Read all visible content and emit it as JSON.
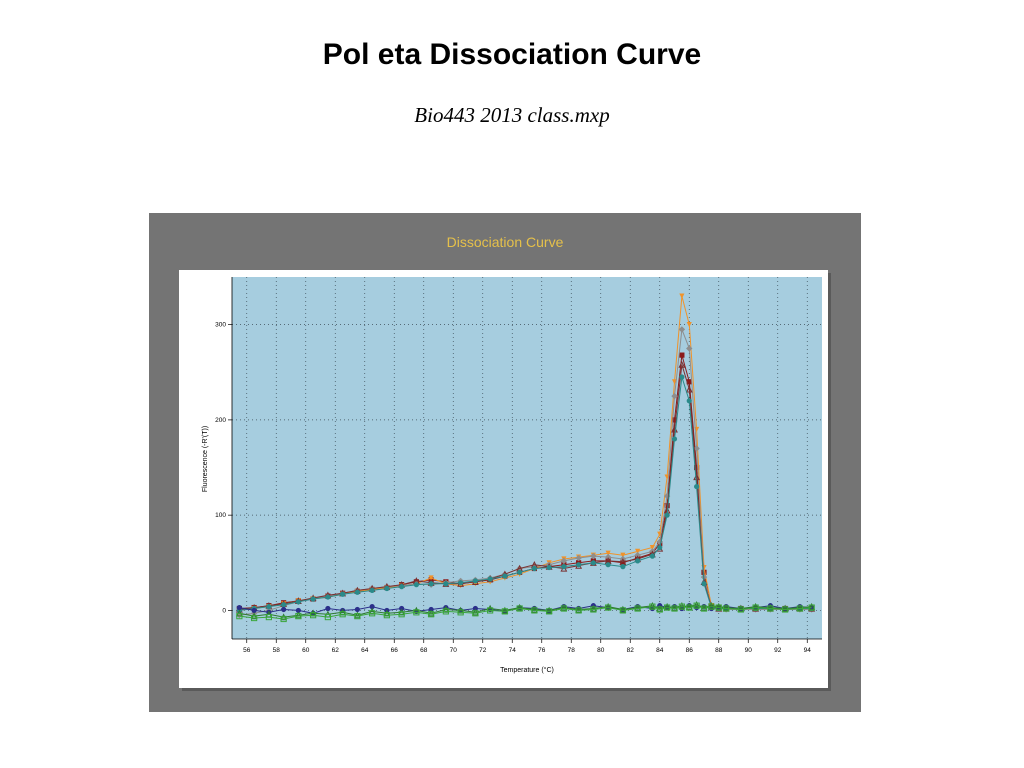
{
  "slide": {
    "title": "Pol eta Dissociation Curve",
    "subtitle": "Bio443 2013 class.mxp"
  },
  "colors": {
    "frame": "#747474",
    "panel_title": "#e5c04a",
    "plot_background": "#a6cddf",
    "grid": "#3a4a55"
  },
  "chart_data": {
    "type": "line",
    "title": "Dissociation Curve",
    "xlabel": "Temperature (°C)",
    "ylabel": "Fluorescence (-R'(T))",
    "xlim": [
      55,
      95
    ],
    "ylim": [
      -30,
      350
    ],
    "xticks": [
      56,
      58,
      60,
      62,
      64,
      66,
      68,
      70,
      72,
      74,
      76,
      78,
      80,
      82,
      84,
      86,
      88,
      90,
      92,
      94
    ],
    "yticks": [
      0,
      100,
      200,
      300
    ],
    "grid": true,
    "x": [
      55.5,
      56.5,
      57.5,
      58.5,
      59.5,
      60.5,
      61.5,
      62.5,
      63.5,
      64.5,
      65.5,
      66.5,
      67.5,
      68.5,
      69.5,
      70.5,
      71.5,
      72.5,
      73.5,
      74.5,
      75.5,
      76.5,
      77.5,
      78.5,
      79.5,
      80.5,
      81.5,
      82.5,
      83.5,
      84.0,
      84.5,
      85.0,
      85.5,
      86.0,
      86.5,
      87.0,
      87.5,
      88.0,
      88.5,
      89.5,
      90.5,
      91.5,
      92.5,
      93.5,
      94.3
    ],
    "series": [
      {
        "color": "#8b1a1a",
        "marker": "square",
        "values": [
          2,
          3,
          5,
          8,
          10,
          12,
          15,
          18,
          20,
          22,
          24,
          27,
          30,
          32,
          30,
          28,
          30,
          32,
          36,
          40,
          44,
          46,
          48,
          50,
          52,
          52,
          50,
          55,
          60,
          70,
          110,
          200,
          268,
          240,
          150,
          40,
          5,
          3,
          2,
          2,
          2,
          2,
          2,
          2,
          2
        ]
      },
      {
        "color": "#f0932a",
        "marker": "triangle-down",
        "values": [
          0,
          2,
          4,
          7,
          10,
          12,
          14,
          17,
          20,
          22,
          24,
          26,
          28,
          34,
          28,
          26,
          28,
          30,
          34,
          38,
          44,
          50,
          54,
          56,
          58,
          60,
          58,
          62,
          66,
          80,
          140,
          240,
          330,
          300,
          190,
          45,
          5,
          2,
          1,
          1,
          1,
          1,
          1,
          1,
          1
        ]
      },
      {
        "color": "#8e8e8e",
        "marker": "diamond",
        "values": [
          -5,
          -3,
          0,
          5,
          9,
          12,
          15,
          18,
          21,
          23,
          25,
          26,
          28,
          27,
          29,
          31,
          32,
          34,
          38,
          44,
          46,
          48,
          52,
          55,
          57,
          56,
          54,
          58,
          62,
          72,
          120,
          225,
          295,
          275,
          170,
          35,
          3,
          2,
          1,
          1,
          1,
          1,
          1,
          1,
          1
        ]
      },
      {
        "color": "#7a3030",
        "marker": "triangle-up",
        "values": [
          1,
          3,
          5,
          7,
          10,
          13,
          16,
          18,
          21,
          23,
          25,
          27,
          31,
          29,
          28,
          28,
          30,
          33,
          38,
          44,
          48,
          46,
          44,
          47,
          50,
          52,
          51,
          54,
          59,
          65,
          105,
          190,
          258,
          232,
          140,
          30,
          4,
          2,
          2,
          2,
          2,
          2,
          2,
          2,
          2
        ]
      },
      {
        "color": "#2a8a8a",
        "marker": "circle",
        "values": [
          0,
          2,
          4,
          6,
          9,
          12,
          14,
          17,
          19,
          21,
          23,
          25,
          27,
          28,
          28,
          29,
          31,
          33,
          36,
          40,
          44,
          45,
          46,
          48,
          50,
          48,
          46,
          52,
          57,
          66,
          100,
          180,
          245,
          220,
          130,
          28,
          3,
          2,
          2,
          2,
          2,
          2,
          2,
          2,
          2
        ]
      },
      {
        "color": "#2b2f8a",
        "marker": "circle",
        "values": [
          3,
          0,
          -2,
          1,
          0,
          -3,
          2,
          0,
          1,
          4,
          0,
          2,
          -1,
          1,
          3,
          0,
          2,
          1,
          -1,
          3,
          2,
          0,
          4,
          2,
          5,
          3,
          1,
          4,
          2,
          5,
          3,
          4,
          2,
          5,
          3,
          4,
          2,
          3,
          4,
          2,
          3,
          5,
          2,
          4,
          3
        ]
      },
      {
        "color": "#2f7a2f",
        "marker": "triangle-up",
        "values": [
          -3,
          -6,
          -4,
          -7,
          -5,
          -3,
          -4,
          -2,
          -5,
          -1,
          -3,
          -2,
          0,
          -3,
          1,
          0,
          -2,
          2,
          0,
          3,
          1,
          0,
          3,
          1,
          2,
          4,
          1,
          3,
          5,
          2,
          4,
          3,
          5,
          4,
          6,
          3,
          5,
          4,
          3,
          2,
          4,
          3,
          2,
          3,
          4
        ]
      },
      {
        "color": "#3aa63a",
        "marker": "square-open",
        "values": [
          -6,
          -8,
          -7,
          -9,
          -6,
          -5,
          -7,
          -4,
          -6,
          -3,
          -5,
          -4,
          -2,
          -4,
          -1,
          -2,
          -3,
          0,
          -1,
          2,
          0,
          -1,
          2,
          0,
          1,
          3,
          0,
          2,
          4,
          1,
          3,
          2,
          4,
          3,
          5,
          2,
          4,
          3,
          2,
          1,
          3,
          2,
          1,
          2,
          3
        ]
      }
    ]
  }
}
